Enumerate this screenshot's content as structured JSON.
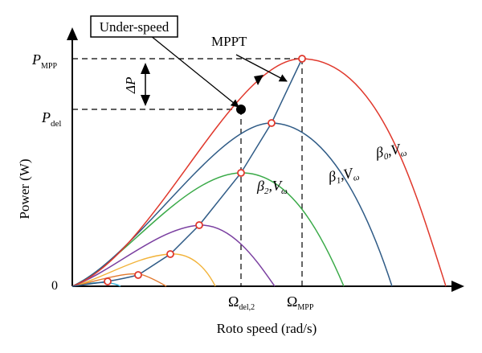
{
  "labels": {
    "p_mpp_main": "P",
    "p_mpp_sub": "MPP",
    "p_del_main": "P",
    "p_del_sub": "del",
    "zero": "0",
    "delta_p_main": "ΔP",
    "y_axis": "Power (W)",
    "x_axis": "Roto speed (rad/s)",
    "omega_del_main": "Ω",
    "omega_del_sub": "del,2",
    "omega_mpp_main": "Ω",
    "omega_mpp_sub": "MPP",
    "under_speed": "Under-speed",
    "mppt": "MPPT",
    "curve0_beta": "β",
    "curve0_beta_sub": "0",
    "curve0_v": ",V",
    "curve0_v_sub": "ω",
    "curve1_beta": "β",
    "curve1_beta_sub": "1",
    "curve1_v": ",V",
    "curve1_v_sub": "ω",
    "curve2_beta": "β",
    "curve2_beta_sub": "2",
    "curve2_v": ",V",
    "curve2_v_sub": "ω"
  },
  "colors": {
    "curve_beta0": "#e0382c",
    "curve_beta1": "#2f5b86",
    "curve_beta2": "#3aaa48",
    "curve_purple": "#7a3fa0",
    "curve_yellow": "#f2b33a",
    "curve_orange": "#e0782c",
    "curve_cyan": "#3ab0d8",
    "mppt_line": "#2f5b86",
    "marker": "#e0382c",
    "axis": "#000000"
  }
}
